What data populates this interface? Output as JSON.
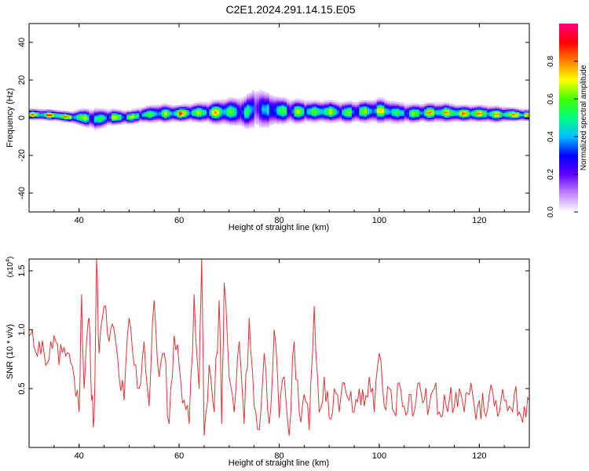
{
  "title": "C2E1.2024.291.14.15.E05",
  "chart_data": [
    {
      "type": "heatmap",
      "xlabel": "Height of straight line (km)",
      "ylabel": "Frequency (Hz)",
      "xlim": [
        30,
        130
      ],
      "ylim": [
        -50,
        50
      ],
      "xticks": [
        40,
        60,
        80,
        100,
        120
      ],
      "yticks": [
        -40,
        -20,
        0,
        20,
        40
      ],
      "colorbar": {
        "label": "Normalized spectral amplitude",
        "range": [
          0.0,
          1.0
        ],
        "ticks": [
          "0.0",
          "0.2",
          "0.4",
          "0.6",
          "0.8"
        ],
        "colors": [
          "#ffffff",
          "#c080ff",
          "#6000ff",
          "#0000ff",
          "#00c0ff",
          "#00ff80",
          "#40ff00",
          "#ffff00",
          "#ff8000",
          "#ff0000",
          "#ff0080"
        ]
      },
      "ridge": {
        "x": [
          31,
          35,
          38,
          40,
          43,
          46,
          50,
          53,
          56,
          60,
          63,
          66,
          70,
          73,
          75,
          77,
          80,
          83,
          86,
          90,
          93,
          96,
          100,
          103,
          106,
          110,
          113,
          116,
          120,
          123,
          126,
          130
        ],
        "center_hz": [
          1.5,
          1,
          0,
          0,
          -1,
          0,
          0,
          1.5,
          2,
          2,
          2.5,
          2.5,
          3,
          2.5,
          5,
          4,
          3.5,
          3,
          3,
          3,
          2.5,
          3,
          3.5,
          2.5,
          2,
          2.5,
          2.5,
          2,
          2,
          1.5,
          1.5,
          1
        ],
        "amplitude": [
          0.85,
          0.9,
          0.85,
          0.75,
          0.55,
          0.7,
          0.75,
          0.6,
          0.7,
          0.85,
          0.7,
          0.75,
          0.65,
          0.55,
          0.4,
          0.45,
          0.6,
          0.65,
          0.7,
          0.75,
          0.65,
          0.7,
          0.75,
          0.6,
          0.7,
          0.8,
          0.75,
          0.8,
          0.8,
          0.75,
          0.85,
          0.9
        ],
        "width_hz": [
          2,
          2,
          2,
          3,
          4,
          3,
          2.5,
          3,
          3.5,
          3,
          3.5,
          4,
          5,
          6,
          8,
          7,
          5,
          4.5,
          4,
          4,
          4,
          4,
          4.5,
          4,
          3.5,
          3.5,
          3.5,
          3,
          3,
          3,
          2.5,
          2
        ]
      }
    },
    {
      "type": "line",
      "xlabel": "Height of straight line (km)",
      "ylabel": "SNR (10 * v/v)",
      "multiplier": "(x10",
      "multiplier_exp": "4",
      "multiplier_close": ")",
      "xlim": [
        30,
        130
      ],
      "ylim": [
        0,
        1.6
      ],
      "xticks": [
        40,
        60,
        80,
        100,
        120
      ],
      "yticks": [
        0.5,
        1.0,
        1.5
      ],
      "ytick_labels": [
        "0.5",
        "1.0",
        "1.5"
      ],
      "series": [
        {
          "color": "#e83030",
          "x": [
            30,
            31,
            32,
            33,
            34,
            35,
            36,
            37,
            38,
            39,
            40,
            40.5,
            41,
            41.5,
            42,
            42.5,
            43,
            43.5,
            44,
            45,
            46,
            47,
            48,
            49,
            50,
            51,
            52,
            53,
            54,
            55,
            56,
            57,
            58,
            59,
            60,
            61,
            62,
            63,
            64,
            64.5,
            65,
            66,
            67,
            68,
            68.5,
            69,
            70,
            71,
            72,
            73,
            74,
            75,
            76,
            77,
            78,
            79,
            80,
            81,
            82,
            83,
            84,
            85,
            86,
            87,
            88,
            89,
            90,
            91,
            92,
            93,
            94,
            95,
            96,
            97,
            98,
            99,
            100,
            101,
            102,
            103,
            104,
            105,
            106,
            107,
            108,
            109,
            110,
            111,
            112,
            113,
            114,
            115,
            116,
            117,
            118,
            119,
            120,
            121,
            122,
            123,
            124,
            125,
            126,
            127,
            128,
            129,
            130
          ],
          "values": [
            0.95,
            0.85,
            0.9,
            0.8,
            0.75,
            0.95,
            0.7,
            0.85,
            0.8,
            0.6,
            0.3,
            1.3,
            0.5,
            0.9,
            1.1,
            0.4,
            0.25,
            1.6,
            0.8,
            1.2,
            0.9,
            1.0,
            0.6,
            0.4,
            1.1,
            0.7,
            0.5,
            0.9,
            0.35,
            1.25,
            0.6,
            0.8,
            0.2,
            0.95,
            0.7,
            0.4,
            0.2,
            1.3,
            0.5,
            1.6,
            0.1,
            0.7,
            0.3,
            1.25,
            0.2,
            1.4,
            0.6,
            0.3,
            0.9,
            0.2,
            1.1,
            0.35,
            0.15,
            0.8,
            0.2,
            1.0,
            0.25,
            0.6,
            0.1,
            0.9,
            0.3,
            0.45,
            0.15,
            1.2,
            0.3,
            0.6,
            0.25,
            0.5,
            0.3,
            0.55,
            0.4,
            0.3,
            0.5,
            0.35,
            0.6,
            0.3,
            0.8,
            0.35,
            0.5,
            0.3,
            0.55,
            0.35,
            0.45,
            0.3,
            0.55,
            0.4,
            0.35,
            0.5,
            0.3,
            0.45,
            0.4,
            0.35,
            0.5,
            0.3,
            0.45,
            0.35,
            0.4,
            0.3,
            0.45,
            0.35,
            0.3,
            0.4,
            0.35,
            0.45,
            0.3,
            0.35,
            0.4
          ]
        }
      ]
    }
  ]
}
